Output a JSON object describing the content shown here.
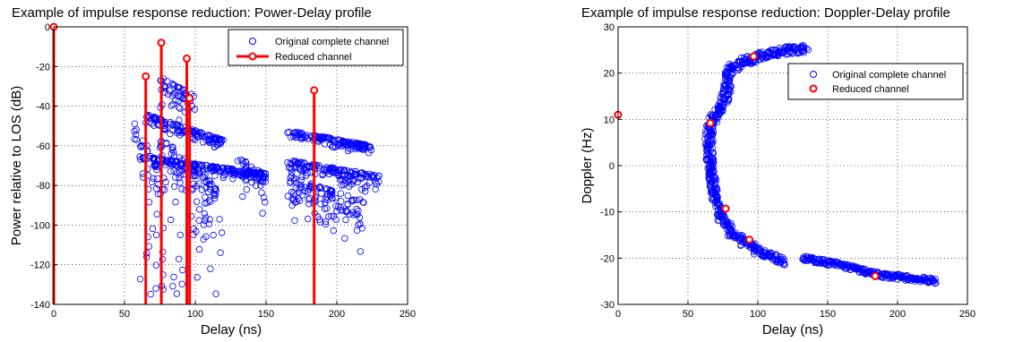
{
  "chart_data": [
    {
      "type": "scatter",
      "title": "Example of impulse response reduction: Power-Delay profile",
      "xlabel": "Delay (ns)",
      "ylabel": "Power relative to LOS (dB)",
      "xlim": [
        0,
        250
      ],
      "ylim": [
        -140,
        0
      ],
      "xticks": [
        "0",
        "50",
        "100",
        "150",
        "200",
        "250"
      ],
      "yticks": [
        "0",
        "-20",
        "-40",
        "-60",
        "-80",
        "-100",
        "-120",
        "-140"
      ],
      "grid": true,
      "legend_position": "top-right",
      "series": [
        {
          "name": "Original complete channel",
          "marker": "circle-open",
          "color": "#0000ff",
          "clusters": [
            {
              "x_range": [
                57,
                75
              ],
              "y_range": [
                -48,
                -72
              ],
              "spread": 32
            },
            {
              "x_range": [
                65,
                120
              ],
              "y_range": [
                -44,
                -57
              ],
              "spread": 6
            },
            {
              "x_range": [
                70,
                150
              ],
              "y_range": [
                -66,
                -74
              ],
              "spread": 6
            },
            {
              "x_range": [
                75,
                100
              ],
              "y_range": [
                -25,
                -35
              ],
              "spread": 18
            },
            {
              "x_range": [
                75,
                115
              ],
              "y_range": [
                -55,
                -80
              ],
              "spread": 35
            },
            {
              "x_range": [
                130,
                150
              ],
              "y_range": [
                -65,
                -75
              ],
              "spread": 22
            },
            {
              "x_range": [
                165,
                225
              ],
              "y_range": [
                -52,
                -60
              ],
              "spread": 5
            },
            {
              "x_range": [
                165,
                230
              ],
              "y_range": [
                -67,
                -75
              ],
              "spread": 10
            },
            {
              "x_range": [
                165,
                220
              ],
              "y_range": [
                -75,
                -88
              ],
              "spread": 28
            }
          ]
        },
        {
          "name": "Reduced channel",
          "style": "stem",
          "color": "#ff0000",
          "x": [
            0,
            65,
            76,
            94,
            96,
            184
          ],
          "y": [
            0,
            -25,
            -8,
            -16,
            -36,
            -32
          ]
        }
      ]
    },
    {
      "type": "scatter",
      "title": "Example of impulse response reduction: Doppler-Delay profile",
      "xlabel": "Delay (ns)",
      "ylabel": "Doppler (Hz)",
      "xlim": [
        0,
        250
      ],
      "ylim": [
        -30,
        30
      ],
      "xticks": [
        "0",
        "50",
        "100",
        "150",
        "200",
        "250"
      ],
      "yticks": [
        "30",
        "20",
        "10",
        "0",
        "-10",
        "-20",
        "-30"
      ],
      "grid": true,
      "legend_position": "top-right",
      "series": [
        {
          "name": "Original complete channel",
          "marker": "circle-open",
          "color": "#0000ff",
          "band": [
            [
              135,
              25.3
            ],
            [
              118,
              24.8
            ],
            [
              100,
              23.6
            ],
            [
              90,
              22.5
            ],
            [
              80,
              21
            ],
            [
              78,
              17
            ],
            [
              76,
              14
            ],
            [
              72,
              12
            ],
            [
              66,
              9
            ],
            [
              65,
              5
            ],
            [
              66,
              0
            ],
            [
              69,
              -6
            ],
            [
              74,
              -11
            ],
            [
              80,
              -14
            ],
            [
              90,
              -16.5
            ],
            [
              100,
              -18.5
            ],
            [
              115,
              -20
            ],
            [
              120,
              -21
            ]
          ],
          "tail": [
            [
              132,
              -20
            ],
            [
              160,
              -21.5
            ],
            [
              184,
              -23.5
            ],
            [
              228,
              -25
            ]
          ]
        },
        {
          "name": "Reduced channel",
          "marker": "circle",
          "color": "#ff0000",
          "x": [
            0,
            66,
            77,
            94,
            97,
            184
          ],
          "y": [
            11,
            9.2,
            -9.3,
            -16,
            23.6,
            -23.9
          ]
        }
      ]
    }
  ]
}
